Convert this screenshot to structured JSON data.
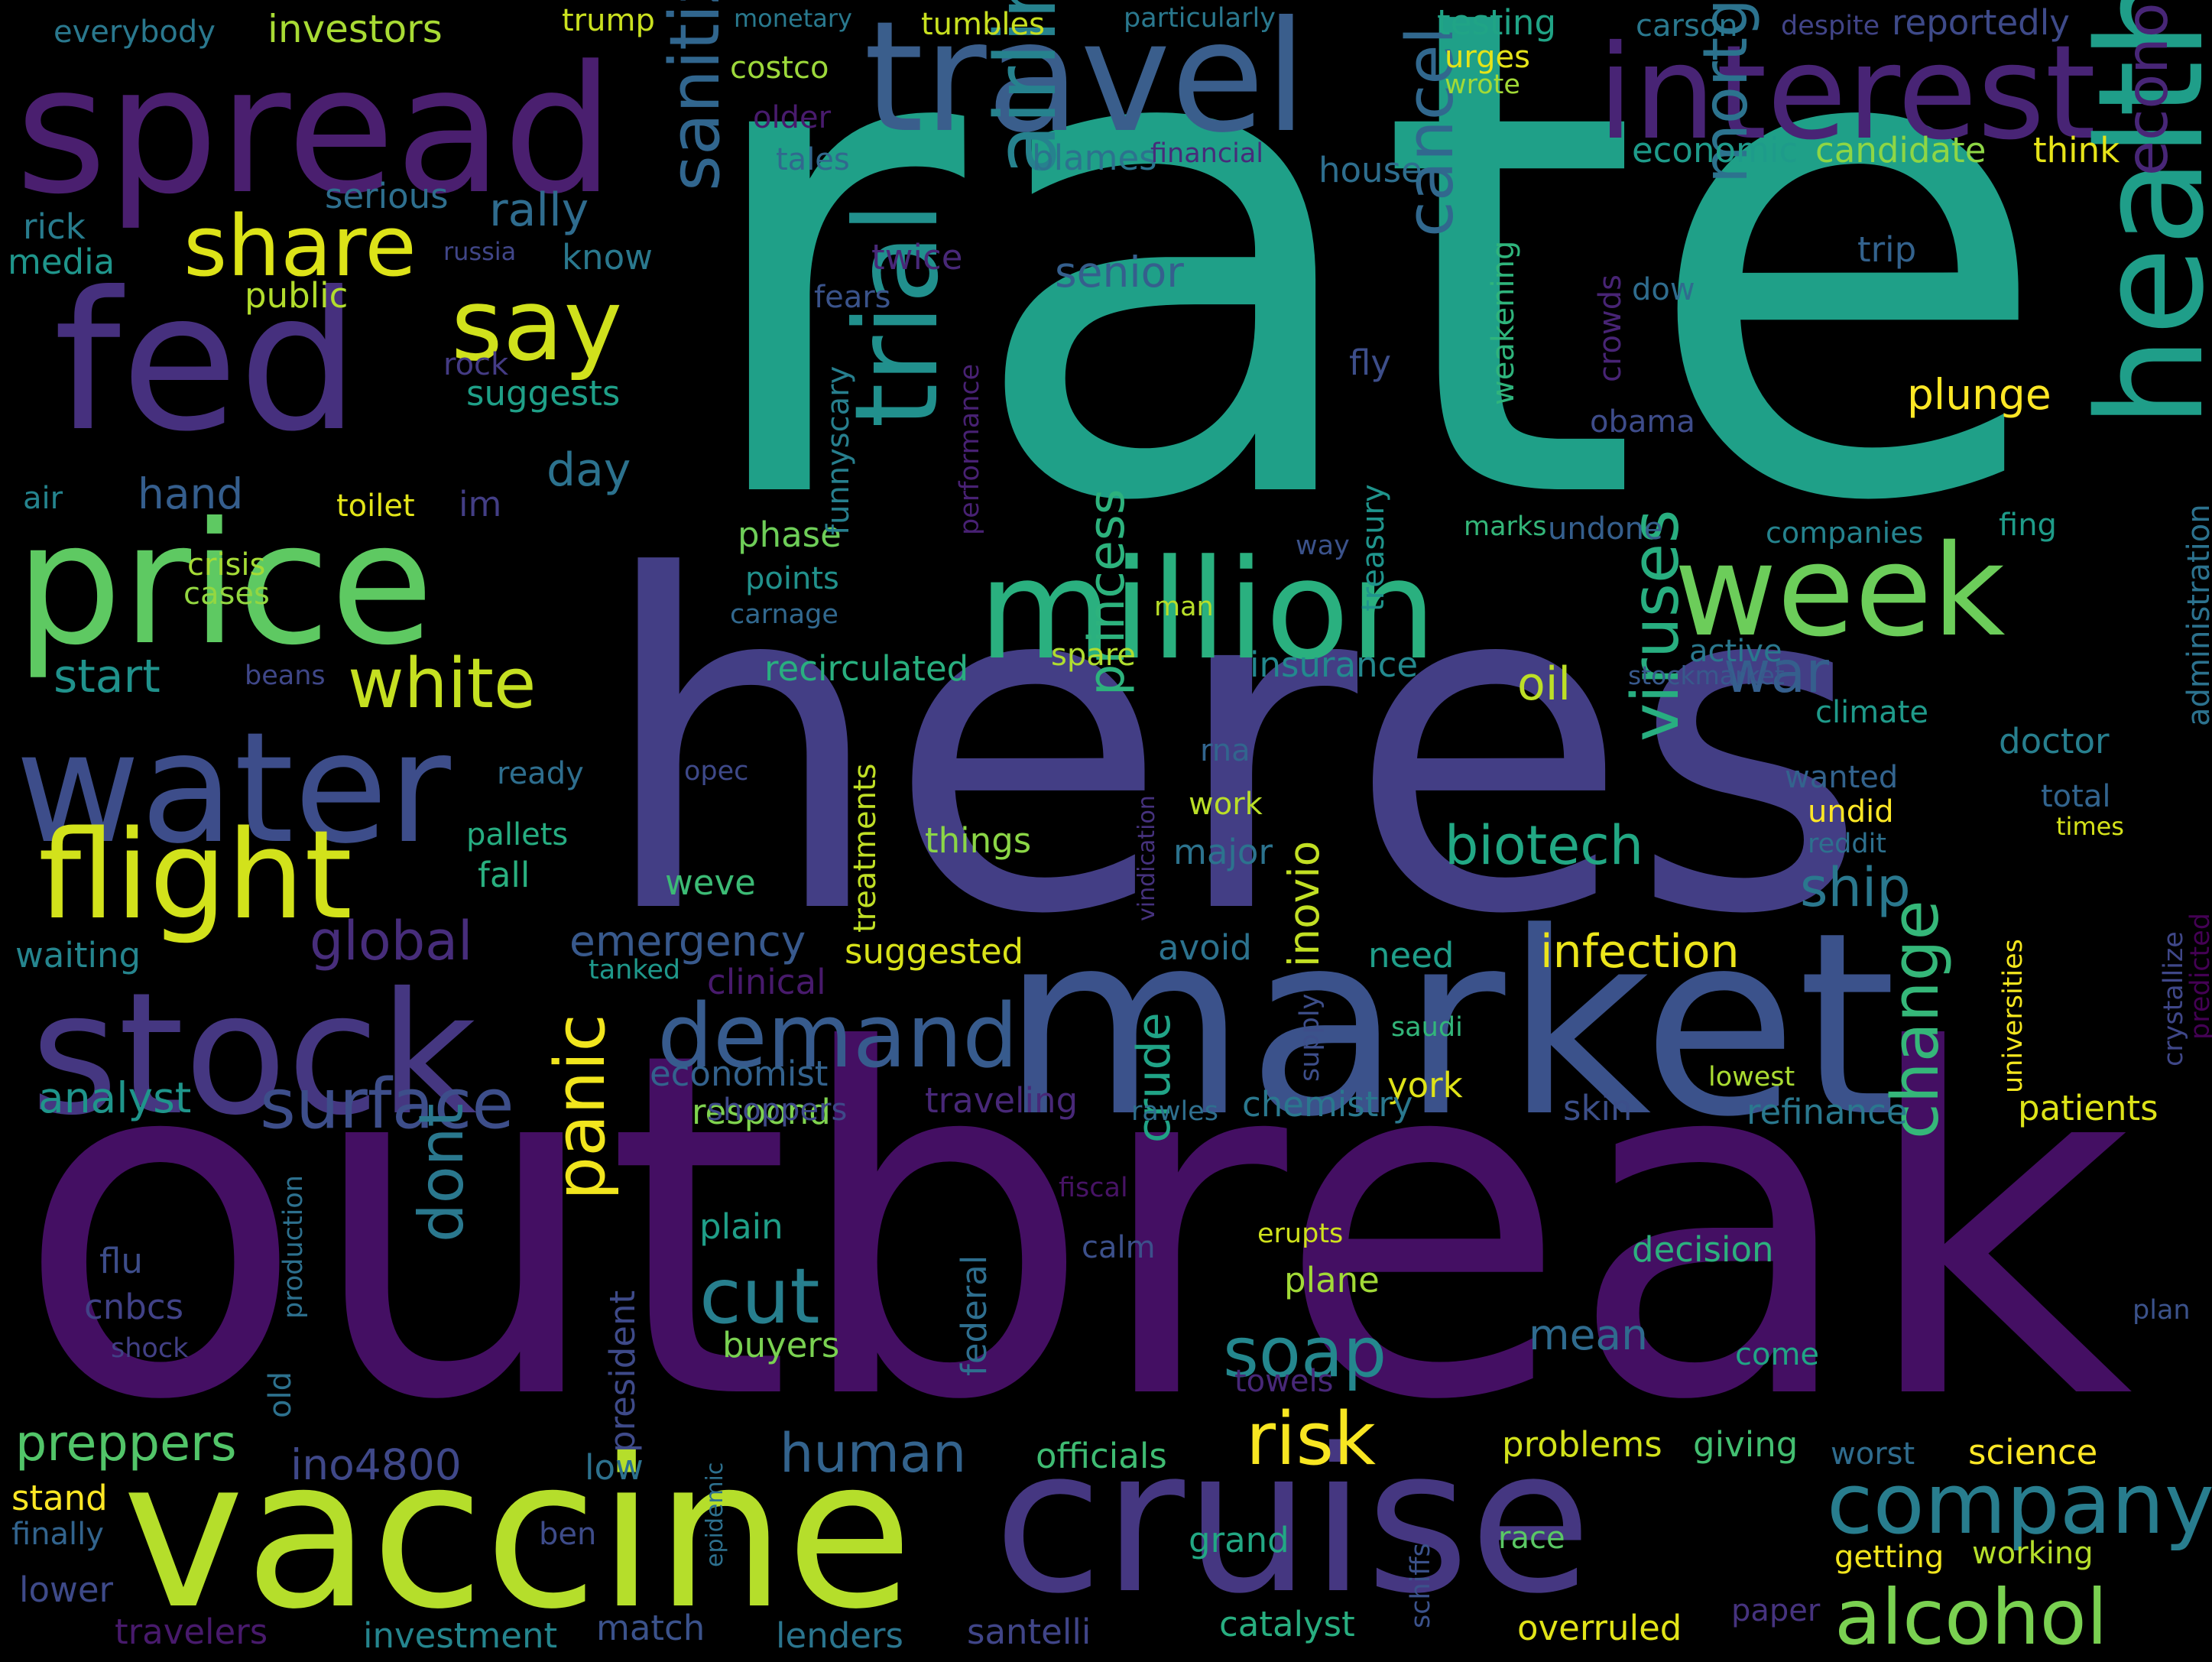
{
  "words": [
    {
      "text": "rate",
      "color": "#1fa088"
    },
    {
      "text": "heres",
      "color": "#433e85"
    },
    {
      "text": "outbreak",
      "color": "#440f63"
    },
    {
      "text": "market",
      "color": "#3b528b"
    },
    {
      "text": "cruise",
      "color": "#453781"
    },
    {
      "text": "vaccine",
      "color": "#b5de2b"
    },
    {
      "text": "spread",
      "color": "#4a1f6f"
    },
    {
      "text": "travel",
      "color": "#3a5e8c"
    },
    {
      "text": "interest",
      "color": "#482475"
    },
    {
      "text": "fed",
      "color": "#46307e"
    },
    {
      "text": "price",
      "color": "#5ec962"
    },
    {
      "text": "water",
      "color": "#3d4d8a"
    },
    {
      "text": "stock",
      "color": "#453781"
    },
    {
      "text": "health",
      "color": "#1f9e89"
    },
    {
      "text": "million",
      "color": "#2ab07f"
    },
    {
      "text": "week",
      "color": "#6ccd5a"
    },
    {
      "text": "flight",
      "color": "#d2e21b"
    },
    {
      "text": "trial",
      "color": "#21908d"
    },
    {
      "text": "airlines",
      "color": "#26828e"
    },
    {
      "text": "sanitizer",
      "color": "#31668e"
    },
    {
      "text": "company",
      "color": "#287d8e"
    },
    {
      "text": "demand",
      "color": "#375b8d"
    },
    {
      "text": "share",
      "color": "#dde318"
    },
    {
      "text": "say",
      "color": "#d0e11c"
    },
    {
      "text": "alcohol",
      "color": "#7ad151"
    },
    {
      "text": "economy",
      "color": "#482677"
    },
    {
      "text": "mortgage",
      "color": "#2c738e"
    },
    {
      "text": "cancel",
      "color": "#31688e"
    },
    {
      "text": "white",
      "color": "#c5e021"
    },
    {
      "text": "cut",
      "color": "#277f8e"
    },
    {
      "text": "surface",
      "color": "#3d4e8a"
    },
    {
      "text": "viruses",
      "color": "#28ae80"
    },
    {
      "text": "panic",
      "color": "#f1e51d"
    },
    {
      "text": "soap",
      "color": "#24878e"
    },
    {
      "text": "risk",
      "color": "#f8e621"
    },
    {
      "text": "war",
      "color": "#355f8d"
    },
    {
      "text": "change",
      "color": "#35b779"
    },
    {
      "text": "human",
      "color": "#33638d"
    },
    {
      "text": "biotech",
      "color": "#22a884"
    },
    {
      "text": "infection",
      "color": "#ece51b"
    },
    {
      "text": "ship",
      "color": "#2a788e"
    },
    {
      "text": "dont",
      "color": "#2a788e"
    },
    {
      "text": "rally",
      "color": "#2f6c8e"
    },
    {
      "text": "princess",
      "color": "#2db27d"
    },
    {
      "text": "crude",
      "color": "#20a386"
    },
    {
      "text": "plunge",
      "color": "#fde725"
    },
    {
      "text": "emergency",
      "color": "#38598c"
    },
    {
      "text": "global",
      "color": "#472d7b"
    },
    {
      "text": "preppers",
      "color": "#52c569"
    },
    {
      "text": "ino4800",
      "color": "#3f4889"
    },
    {
      "text": "senior",
      "color": "#355f8d"
    },
    {
      "text": "start",
      "color": "#20928c"
    },
    {
      "text": "analyst",
      "color": "#1f958b"
    },
    {
      "text": "day",
      "color": "#2c728e"
    },
    {
      "text": "hand",
      "color": "#355e8d"
    },
    {
      "text": "oil",
      "color": "#bddf26"
    },
    {
      "text": "mean",
      "color": "#2f6b8e"
    },
    {
      "text": "inovio",
      "color": "#c2df23"
    },
    {
      "text": "vaccine",
      "color": "#b5de2b"
    },
    {
      "text": "investors",
      "color": "#a8db34"
    },
    {
      "text": "everybody",
      "color": "#2a788e"
    },
    {
      "text": "trump",
      "color": "#cae11f"
    },
    {
      "text": "monetary",
      "color": "#29798e"
    },
    {
      "text": "tumbles",
      "color": "#c8e020"
    },
    {
      "text": "particularly",
      "color": "#2a788e"
    },
    {
      "text": "testing",
      "color": "#20a486"
    },
    {
      "text": "carson",
      "color": "#2a788e"
    },
    {
      "text": "despite",
      "color": "#414487"
    },
    {
      "text": "reportedly",
      "color": "#3e4a89"
    },
    {
      "text": "urges",
      "color": "#e5e419"
    },
    {
      "text": "wrote",
      "color": "#a2da37"
    },
    {
      "text": "costco",
      "color": "#9dd93b"
    },
    {
      "text": "older",
      "color": "#481b6d"
    },
    {
      "text": "tales",
      "color": "#31688e"
    },
    {
      "text": "blames",
      "color": "#2c728e"
    },
    {
      "text": "financial",
      "color": "#472c7a"
    },
    {
      "text": "economic",
      "color": "#1e9b8a"
    },
    {
      "text": "candidate",
      "color": "#8ed645"
    },
    {
      "text": "think",
      "color": "#e7e419"
    },
    {
      "text": "house",
      "color": "#2e6e8e"
    },
    {
      "text": "serious",
      "color": "#2e6f8e"
    },
    {
      "text": "rick",
      "color": "#287c8e"
    },
    {
      "text": "media",
      "color": "#1f958b"
    },
    {
      "text": "russia",
      "color": "#404688"
    },
    {
      "text": "know",
      "color": "#2a788e"
    },
    {
      "text": "twice",
      "color": "#482878"
    },
    {
      "text": "fears",
      "color": "#3a538b"
    },
    {
      "text": "public",
      "color": "#b2dd2d"
    },
    {
      "text": "trip",
      "color": "#33628d"
    },
    {
      "text": "dow",
      "color": "#2f6c8e"
    },
    {
      "text": "crowds",
      "color": "#482475"
    },
    {
      "text": "weakening",
      "color": "#2fb47c"
    },
    {
      "text": "rock",
      "color": "#443b84"
    },
    {
      "text": "suggests",
      "color": "#1fa088"
    },
    {
      "text": "fly",
      "color": "#3d4e8a"
    },
    {
      "text": "obama",
      "color": "#3e4c8a"
    },
    {
      "text": "administration",
      "color": "#2c728e"
    },
    {
      "text": "air",
      "color": "#25848e"
    },
    {
      "text": "toilet",
      "color": "#e2e418"
    },
    {
      "text": "im",
      "color": "#433e85"
    },
    {
      "text": "phase",
      "color": "#6ece58"
    },
    {
      "text": "funnyscary",
      "color": "#277f8e"
    },
    {
      "text": "performance",
      "color": "#482173"
    },
    {
      "text": "treasury",
      "color": "#1f948c"
    },
    {
      "text": "marks",
      "color": "#34b679"
    },
    {
      "text": "undone",
      "color": "#355f8d"
    },
    {
      "text": "companies",
      "color": "#25838e"
    },
    {
      "text": "fing",
      "color": "#1e9c89"
    },
    {
      "text": "crisis",
      "color": "#a5db36"
    },
    {
      "text": "cases",
      "color": "#93d741"
    },
    {
      "text": "points",
      "color": "#21918c"
    },
    {
      "text": "carnage",
      "color": "#31688e"
    },
    {
      "text": "way",
      "color": "#3b528b"
    },
    {
      "text": "man",
      "color": "#b8de29"
    },
    {
      "text": "beans",
      "color": "#3f4788"
    },
    {
      "text": "stockmarket",
      "color": "#38598c"
    },
    {
      "text": "recirculated",
      "color": "#29af7f"
    },
    {
      "text": "spare",
      "color": "#b0dd2f"
    },
    {
      "text": "insurance",
      "color": "#23898e"
    },
    {
      "text": "active",
      "color": "#2a788e"
    },
    {
      "text": "climate",
      "color": "#1f9a8a"
    },
    {
      "text": "doctor",
      "color": "#277f8e"
    },
    {
      "text": "ready",
      "color": "#2e6e8e"
    },
    {
      "text": "opec",
      "color": "#3e4989"
    },
    {
      "text": "rna",
      "color": "#32658e"
    },
    {
      "text": "wanted",
      "color": "#33638d"
    },
    {
      "text": "total",
      "color": "#32648e"
    },
    {
      "text": "treatments",
      "color": "#c0df25"
    },
    {
      "text": "vindication",
      "color": "#46327e"
    },
    {
      "text": "undid",
      "color": "#fde725"
    },
    {
      "text": "times",
      "color": "#d5e21a"
    },
    {
      "text": "predicted",
      "color": "#440154"
    },
    {
      "text": "universities",
      "color": "#f4e61e"
    },
    {
      "text": "pallets",
      "color": "#26ad81"
    },
    {
      "text": "things",
      "color": "#8bd646"
    },
    {
      "text": "work",
      "color": "#bade28"
    },
    {
      "text": "reddit",
      "color": "#2d708e"
    },
    {
      "text": "fall",
      "color": "#29af7f"
    },
    {
      "text": "major",
      "color": "#2c738e"
    },
    {
      "text": "weve",
      "color": "#3cbb75"
    },
    {
      "text": "waiting",
      "color": "#25858e"
    },
    {
      "text": "suggested",
      "color": "#d8e219"
    },
    {
      "text": "avoid",
      "color": "#2c728e"
    },
    {
      "text": "need",
      "color": "#1f9e89"
    },
    {
      "text": "crystallize",
      "color": "#3f4788"
    },
    {
      "text": "tanked",
      "color": "#1f988b"
    },
    {
      "text": "clinical",
      "color": "#481a6c"
    },
    {
      "text": "supply",
      "color": "#3d4e8a"
    },
    {
      "text": "saudi",
      "color": "#32b67a"
    },
    {
      "text": "economist",
      "color": "#33628d"
    },
    {
      "text": "lowest",
      "color": "#aadc32"
    },
    {
      "text": "york",
      "color": "#dfe318"
    },
    {
      "text": "respond",
      "color": "#7fd34e"
    },
    {
      "text": "traveling",
      "color": "#482878"
    },
    {
      "text": "rawles",
      "color": "#2e6f8e"
    },
    {
      "text": "chemistry",
      "color": "#2a788e"
    },
    {
      "text": "skin",
      "color": "#3c4f8a"
    },
    {
      "text": "refinance",
      "color": "#2a788e"
    },
    {
      "text": "patients",
      "color": "#dde318"
    },
    {
      "text": "shoppers",
      "color": "#3e4989"
    },
    {
      "text": "fiscal",
      "color": "#471365"
    },
    {
      "text": "production",
      "color": "#2d708e"
    },
    {
      "text": "federal",
      "color": "#2e6e8e"
    },
    {
      "text": "plain",
      "color": "#1f9f88"
    },
    {
      "text": "calm",
      "color": "#3c508b"
    },
    {
      "text": "erupts",
      "color": "#d0e11c"
    },
    {
      "text": "decision",
      "color": "#2cb17e"
    },
    {
      "text": "flu",
      "color": "#3d4d8a"
    },
    {
      "text": "cnbcs",
      "color": "#414287"
    },
    {
      "text": "shock",
      "color": "#424086"
    },
    {
      "text": "plane",
      "color": "#a2da37"
    },
    {
      "text": "president",
      "color": "#3e4a89"
    },
    {
      "text": "old",
      "color": "#2d718e"
    },
    {
      "text": "buyers",
      "color": "#7ad151"
    },
    {
      "text": "come",
      "color": "#21a585"
    },
    {
      "text": "towels",
      "color": "#482878"
    },
    {
      "text": "plan",
      "color": "#3b528b"
    },
    {
      "text": "low",
      "color": "#2d718e"
    },
    {
      "text": "epidemic",
      "color": "#2d708e"
    },
    {
      "text": "officials",
      "color": "#3fbc73"
    },
    {
      "text": "problems",
      "color": "#d2e21b"
    },
    {
      "text": "giving",
      "color": "#43bf71"
    },
    {
      "text": "worst",
      "color": "#2f6c8e"
    },
    {
      "text": "science",
      "color": "#fde725"
    },
    {
      "text": "stand",
      "color": "#fde725"
    },
    {
      "text": "finally",
      "color": "#32648e"
    },
    {
      "text": "ben",
      "color": "#3e4c8a"
    },
    {
      "text": "lower",
      "color": "#3e4a89"
    },
    {
      "text": "grand",
      "color": "#22a884"
    },
    {
      "text": "schiffs",
      "color": "#3b528b"
    },
    {
      "text": "race",
      "color": "#5ac864"
    },
    {
      "text": "getting",
      "color": "#f1e51d"
    },
    {
      "text": "working",
      "color": "#b5de2b"
    },
    {
      "text": "paper",
      "color": "#46337f"
    },
    {
      "text": "travelers",
      "color": "#481a6c"
    },
    {
      "text": "investment",
      "color": "#25858e"
    },
    {
      "text": "match",
      "color": "#3b528b"
    },
    {
      "text": "lenders",
      "color": "#2b758e"
    },
    {
      "text": "santelli",
      "color": "#404588"
    },
    {
      "text": "catalyst",
      "color": "#28ae80"
    },
    {
      "text": "overruled",
      "color": "#e2e418"
    }
  ]
}
